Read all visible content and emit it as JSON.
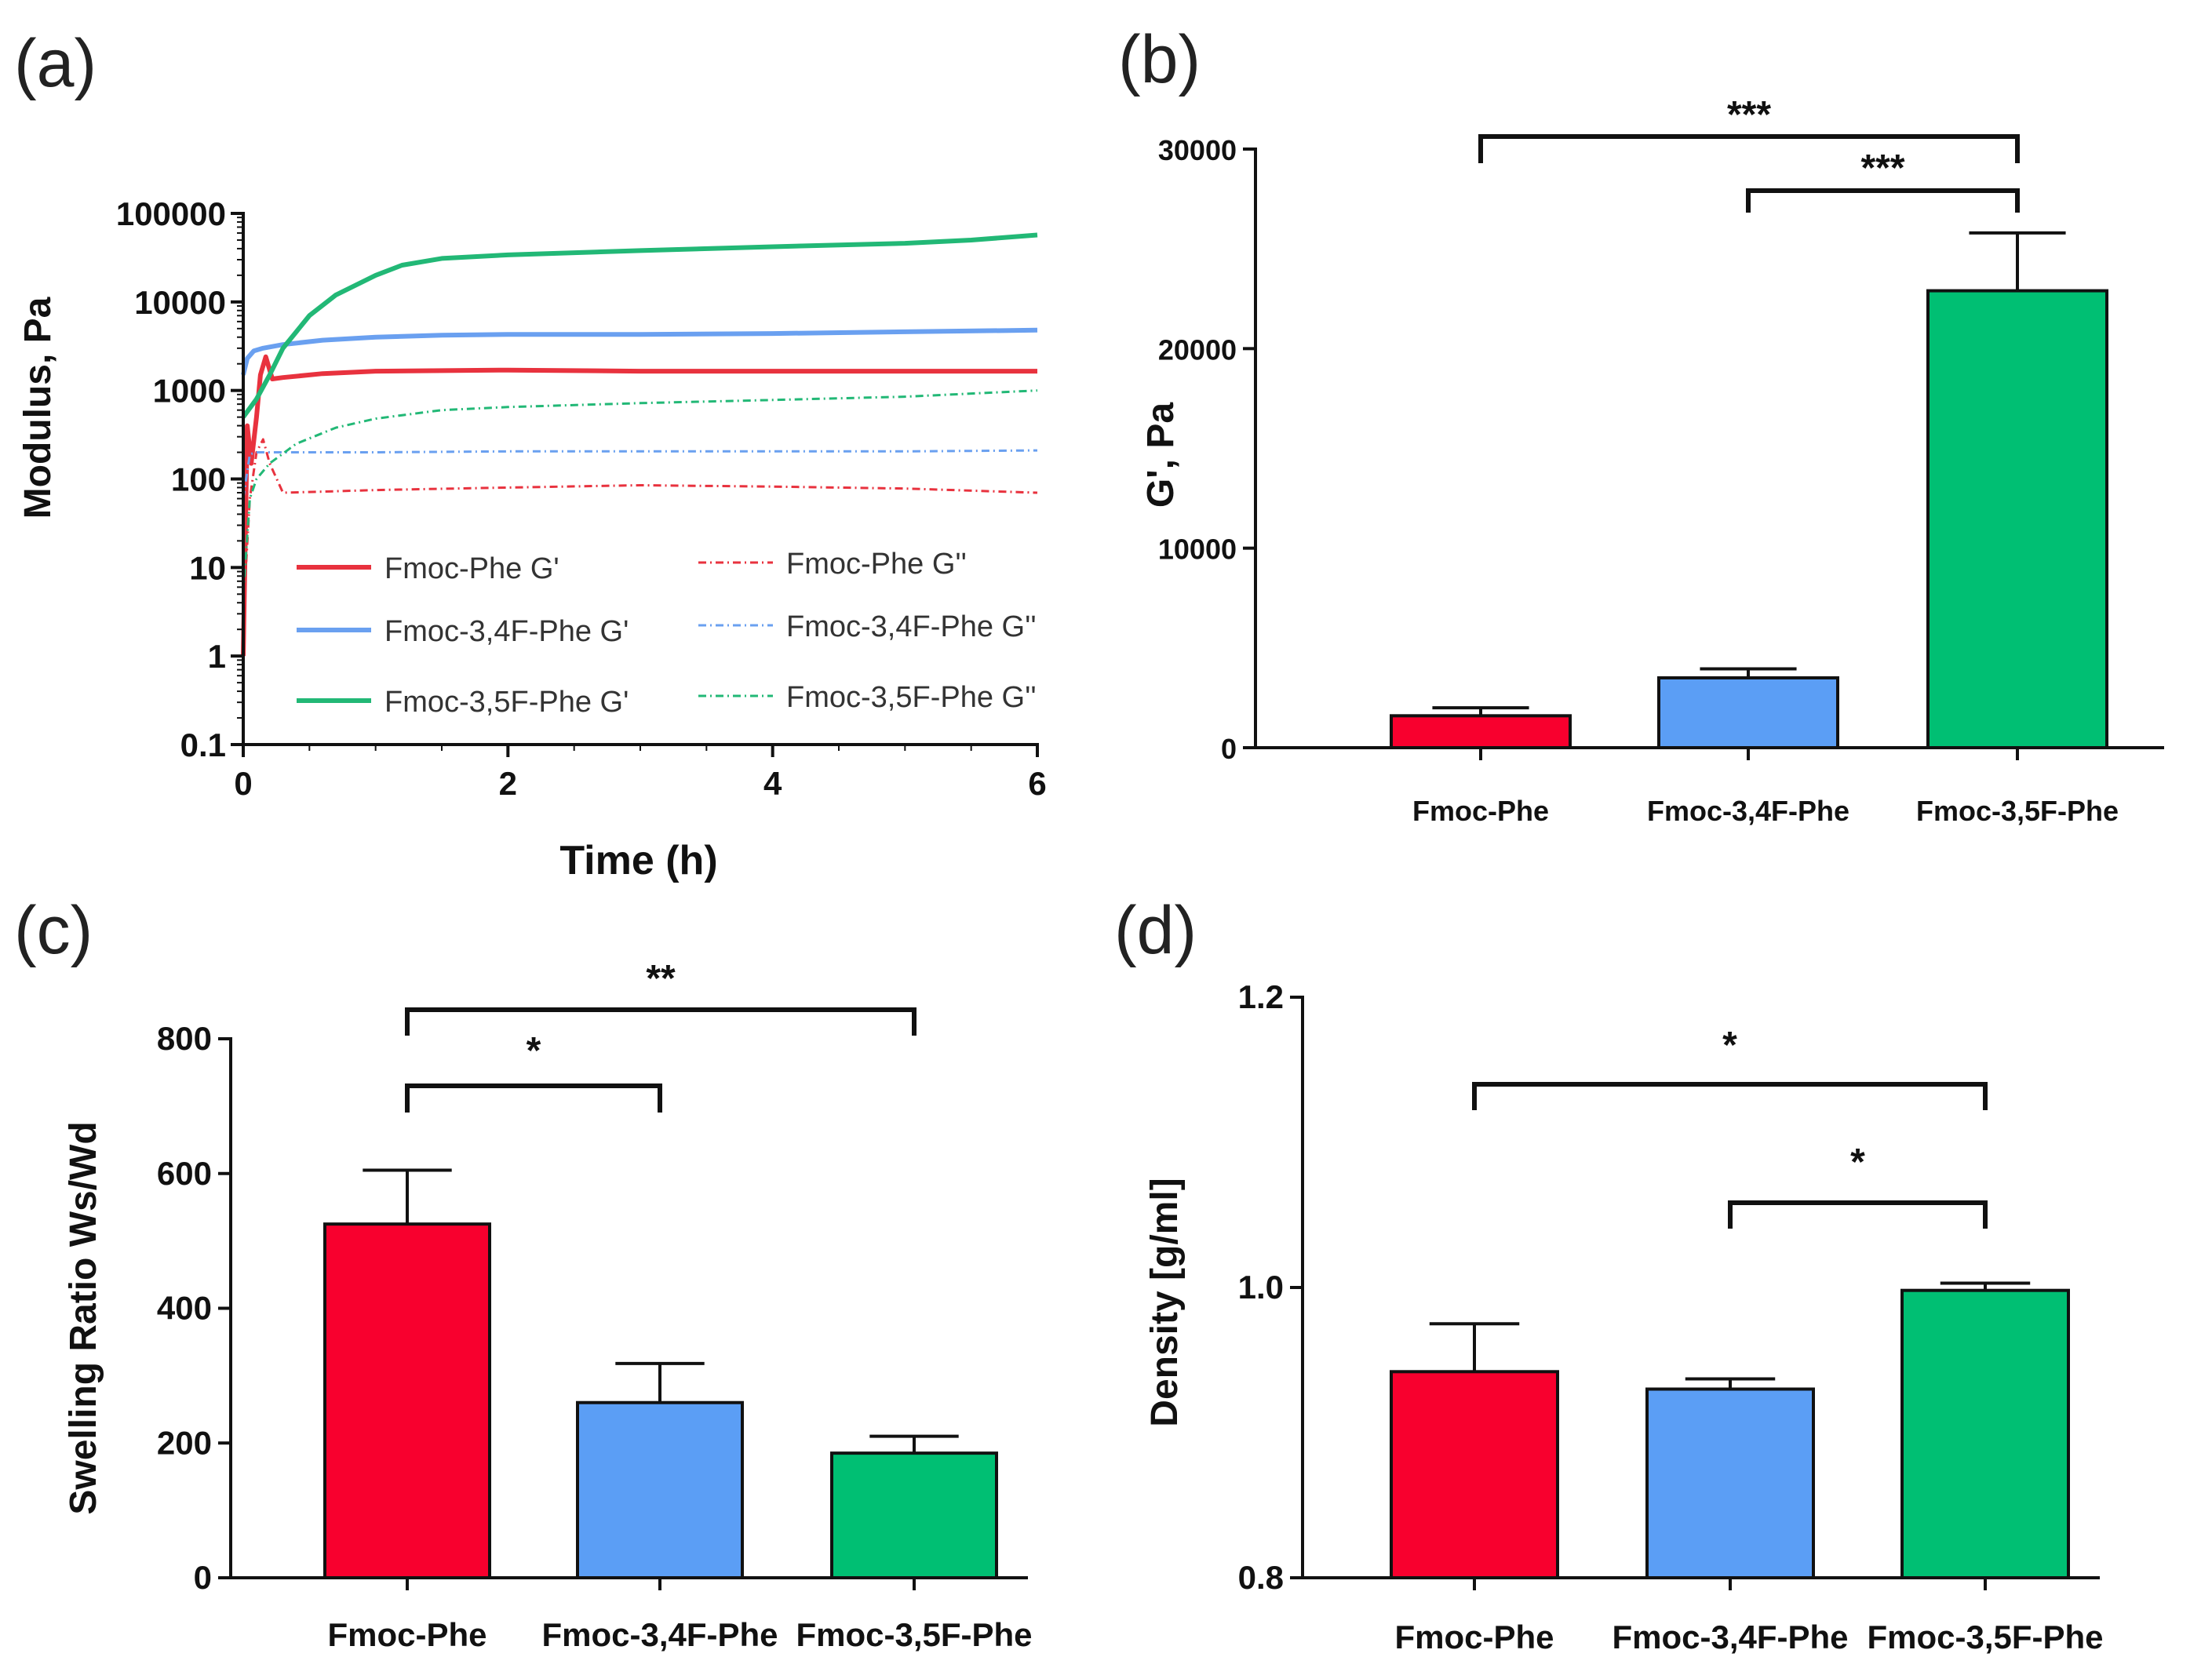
{
  "colors": {
    "red": "#f8002e",
    "blue": "#5b9ef5",
    "green": "#00bf73",
    "line_red": "#e8323e",
    "line_blue": "#6aa0f0",
    "line_green": "#22b876",
    "axis": "#111111"
  },
  "chart_data": [
    {
      "panel": "(a)",
      "type": "line",
      "xlabel": "Time (h)",
      "ylabel": "Modulus, Pa",
      "yscale": "log",
      "xlim": [
        0,
        6
      ],
      "ylim": [
        0.1,
        100000
      ],
      "xticks": [
        "0",
        "2",
        "4",
        "6"
      ],
      "yticks": [
        "0.1",
        "1",
        "10",
        "100",
        "1000",
        "10000",
        "100000"
      ],
      "series": [
        {
          "name": "Fmoc-Phe G'",
          "color": "#e8323e",
          "style": "solid",
          "x": [
            0.0,
            0.03,
            0.06,
            0.1,
            0.13,
            0.17,
            0.2,
            0.22,
            0.3,
            0.6,
            1.0,
            2.0,
            3.0,
            4.0,
            5.0,
            6.0
          ],
          "y": [
            1.0,
            400,
            150,
            500,
            1500,
            2400,
            1700,
            1350,
            1400,
            1550,
            1650,
            1700,
            1650,
            1650,
            1650,
            1650
          ]
        },
        {
          "name": "Fmoc-3,4F-Phe G'",
          "color": "#6aa0f0",
          "style": "solid",
          "x": [
            0.0,
            0.03,
            0.08,
            0.15,
            0.3,
            0.6,
            1.0,
            1.5,
            2.0,
            3.0,
            4.0,
            5.0,
            6.0
          ],
          "y": [
            1500,
            2300,
            2800,
            3000,
            3300,
            3700,
            4000,
            4200,
            4300,
            4300,
            4400,
            4600,
            4800
          ]
        },
        {
          "name": "Fmoc-3,5F-Phe G'",
          "color": "#22b876",
          "style": "solid",
          "x": [
            0.0,
            0.1,
            0.2,
            0.3,
            0.5,
            0.7,
            1.0,
            1.2,
            1.5,
            2.0,
            3.0,
            4.0,
            5.0,
            5.5,
            6.0
          ],
          "y": [
            500,
            800,
            1500,
            3000,
            7000,
            12000,
            20000,
            26000,
            31000,
            34000,
            38000,
            42000,
            46000,
            50000,
            57000
          ]
        },
        {
          "name": "Fmoc-Phe G''",
          "color": "#e8323e",
          "style": "dashdot",
          "x": [
            0.0,
            0.05,
            0.1,
            0.15,
            0.2,
            0.3,
            0.6,
            1.0,
            2.0,
            3.0,
            4.0,
            5.0,
            6.0
          ],
          "y": [
            3,
            60,
            200,
            280,
            150,
            70,
            72,
            75,
            80,
            85,
            82,
            78,
            70
          ]
        },
        {
          "name": "Fmoc-3,4F-Phe G''",
          "color": "#6aa0f0",
          "style": "dashdot",
          "x": [
            0.0,
            0.05,
            0.1,
            0.2,
            0.5,
            1.0,
            2.0,
            3.0,
            4.0,
            5.0,
            6.0
          ],
          "y": [
            60,
            190,
            200,
            200,
            200,
            200,
            205,
            205,
            205,
            205,
            210
          ]
        },
        {
          "name": "Fmoc-3,5F-Phe G''",
          "color": "#22b876",
          "style": "dashdot",
          "x": [
            0.0,
            0.05,
            0.1,
            0.2,
            0.4,
            0.7,
            1.0,
            1.5,
            2.0,
            3.0,
            4.0,
            5.0,
            6.0
          ],
          "y": [
            5,
            60,
            100,
            150,
            250,
            380,
            480,
            600,
            650,
            720,
            780,
            850,
            1000
          ]
        }
      ],
      "legend": {
        "placement": "inside lower"
      }
    },
    {
      "panel": "(b)",
      "type": "bar",
      "ylabel": "G', Pa",
      "ylim": [
        0,
        30000
      ],
      "yticks": [
        "0",
        "10000",
        "20000",
        "30000"
      ],
      "categories": [
        "Fmoc-Phe",
        "Fmoc-3,4F-Phe",
        "Fmoc-3,5F-Phe"
      ],
      "values": [
        1600,
        3500,
        22900
      ],
      "errors": [
        400,
        450,
        2900
      ],
      "colors": [
        "#f8002e",
        "#5b9ef5",
        "#00bf73"
      ],
      "significance": [
        {
          "from": 0,
          "to": 2,
          "label": "***"
        },
        {
          "from": 1,
          "to": 2,
          "label": "***"
        }
      ]
    },
    {
      "panel": "(c)",
      "type": "bar",
      "ylabel": "Swelling Ratio Ws/Wd",
      "ylim": [
        0,
        800
      ],
      "yticks": [
        "0",
        "200",
        "400",
        "600",
        "800"
      ],
      "categories": [
        "Fmoc-Phe",
        "Fmoc-3,4F-Phe",
        "Fmoc-3,5F-Phe"
      ],
      "values": [
        525,
        260,
        185
      ],
      "errors": [
        80,
        58,
        25
      ],
      "colors": [
        "#f8002e",
        "#5b9ef5",
        "#00bf73"
      ],
      "significance": [
        {
          "from": 0,
          "to": 2,
          "label": "**"
        },
        {
          "from": 0,
          "to": 1,
          "label": "*"
        }
      ]
    },
    {
      "panel": "(d)",
      "type": "bar",
      "ylabel": "Density [g/ml]",
      "ylim": [
        0.8,
        1.2
      ],
      "yticks": [
        "0.8",
        "1.0",
        "1.2"
      ],
      "categories": [
        "Fmoc-Phe",
        "Fmoc-3,4F-Phe",
        "Fmoc-3,5F-Phe"
      ],
      "values": [
        0.942,
        0.93,
        0.998
      ],
      "errors": [
        0.033,
        0.007,
        0.005
      ],
      "colors": [
        "#f8002e",
        "#5b9ef5",
        "#00bf73"
      ],
      "significance": [
        {
          "from": 0,
          "to": 2,
          "label": "*"
        },
        {
          "from": 1,
          "to": 2,
          "label": "*"
        }
      ]
    }
  ]
}
